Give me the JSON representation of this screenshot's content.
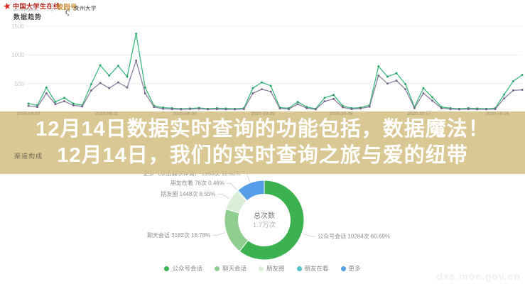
{
  "header": {
    "site_name": "中国大学生在线",
    "site_url": "dxs.moe.gov.cn",
    "page_title": "数据趋势",
    "partner_badge": "校园号",
    "partner_name": "贵州大学"
  },
  "headline": {
    "line1": "12月14日数据实时查询的功能包括，数据魔法！",
    "line2": "12月14日，我们的实时查询之旅与爱的纽带"
  },
  "channel_section": {
    "title": "渠道构成",
    "watermark": "dxs.moe.gov.cn"
  },
  "colors": {
    "band": "#d5c288",
    "grid": "#f1f1f1",
    "axis_label": "#c8c8c8",
    "donut_label": "#8c8c8c",
    "leader_line": "#cccccc"
  },
  "chart_data": [
    {
      "type": "line",
      "title": "数据趋势",
      "x_ticks": [
        "2020-09-02",
        "2020-09-11",
        "2020-09-20",
        "2020-09-29",
        "2020-10-08",
        "2020-10-17",
        "2020-10-26"
      ],
      "y_ticks": [
        500,
        1000,
        1500
      ],
      "ylim": [
        0,
        1500
      ],
      "grid": true,
      "legend_position": "none",
      "series": [
        {
          "name": "series-green",
          "color": "#3cb87c",
          "marker_color": "#2a9d64",
          "values": [
            150,
            120,
            430,
            180,
            250,
            150,
            120,
            490,
            820,
            640,
            810,
            620,
            1370,
            430,
            110,
            80,
            70,
            60,
            65,
            75,
            60,
            70,
            65,
            60,
            70,
            420,
            520,
            460,
            80,
            70,
            180,
            90,
            60,
            250,
            300,
            110,
            70,
            80,
            120,
            800,
            620,
            680,
            490,
            90,
            420,
            260,
            90,
            70,
            60,
            70,
            65,
            60,
            70,
            310,
            540,
            650
          ]
        },
        {
          "name": "series-purple",
          "color": "#8d80a0",
          "marker_color": "#6f6386",
          "values": [
            110,
            90,
            330,
            140,
            190,
            120,
            100,
            380,
            510,
            420,
            520,
            430,
            900,
            330,
            90,
            60,
            55,
            50,
            55,
            60,
            50,
            55,
            50,
            50,
            55,
            330,
            400,
            360,
            65,
            55,
            140,
            70,
            50,
            190,
            230,
            85,
            55,
            65,
            95,
            640,
            500,
            550,
            400,
            70,
            330,
            200,
            70,
            55,
            50,
            55,
            50,
            50,
            55,
            240,
            380,
            390
          ]
        }
      ]
    },
    {
      "type": "pie",
      "subtype": "donut",
      "title": "渠道构成",
      "center_label": "总次数",
      "center_value": "1.7万次",
      "unit": "次",
      "slices": [
        {
          "name": "公众号会话",
          "label": "公众号会话",
          "value": 10284,
          "pct": 60.69,
          "color": "#3bb150"
        },
        {
          "name": "聊天会话",
          "label": "聊天会话",
          "value": 3182,
          "pct": 18.78,
          "color": "#8fce90"
        },
        {
          "name": "朋友圈",
          "label": "朋友圈",
          "value": 1448,
          "pct": 8.55,
          "color": "#d9eed6"
        },
        {
          "name": "朋友在看",
          "label": "朋友在看",
          "value": 78,
          "pct": 0.46,
          "color": "#52c0c9"
        },
        {
          "name": "更多",
          "label": "更多（点击展示详情）",
          "value": 1953,
          "pct": 11.53,
          "color": "#569fe8"
        }
      ],
      "legend": [
        "公众号会话",
        "聊天会话",
        "朋友圈",
        "朋友在看",
        "更多"
      ],
      "legend_position": "bottom"
    }
  ]
}
